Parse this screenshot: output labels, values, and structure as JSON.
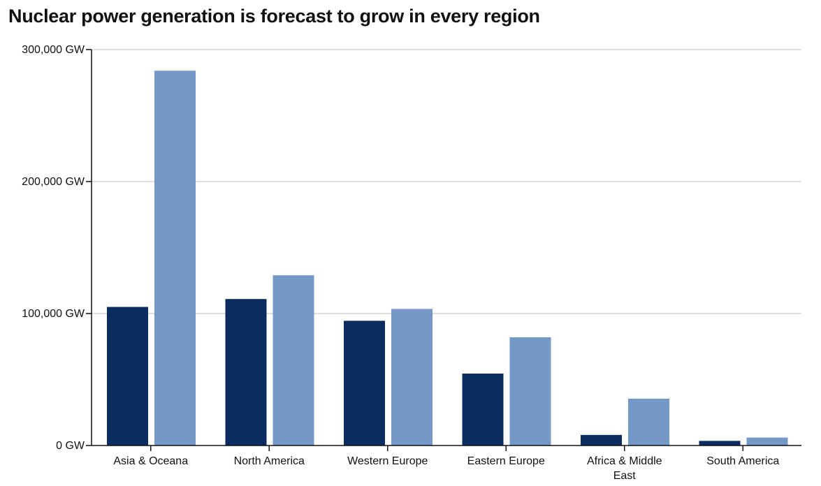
{
  "chart_data": {
    "type": "bar",
    "title": "Nuclear power generation is forecast to grow in every region",
    "xlabel": "",
    "ylabel": "",
    "categories": [
      [
        "Asia & Oceana"
      ],
      [
        "North America"
      ],
      [
        "Western Europe"
      ],
      [
        "Eastern Europe"
      ],
      [
        "Africa & Middle",
        "East"
      ],
      [
        "South America"
      ]
    ],
    "series": [
      {
        "color": "#0b2c5e",
        "values": [
          105000,
          111000,
          94500,
          54500,
          8000,
          3500
        ]
      },
      {
        "color": "#7499c6",
        "values": [
          284000,
          129000,
          103500,
          82000,
          35500,
          6000
        ]
      }
    ],
    "ylim": [
      0,
      300000
    ],
    "yticks": [
      "0 GW",
      "100,000 GW",
      "200,000 GW",
      "300,000 GW"
    ],
    "ytick_values": [
      0,
      100000,
      200000,
      300000
    ],
    "grid": true,
    "legend": "none"
  }
}
